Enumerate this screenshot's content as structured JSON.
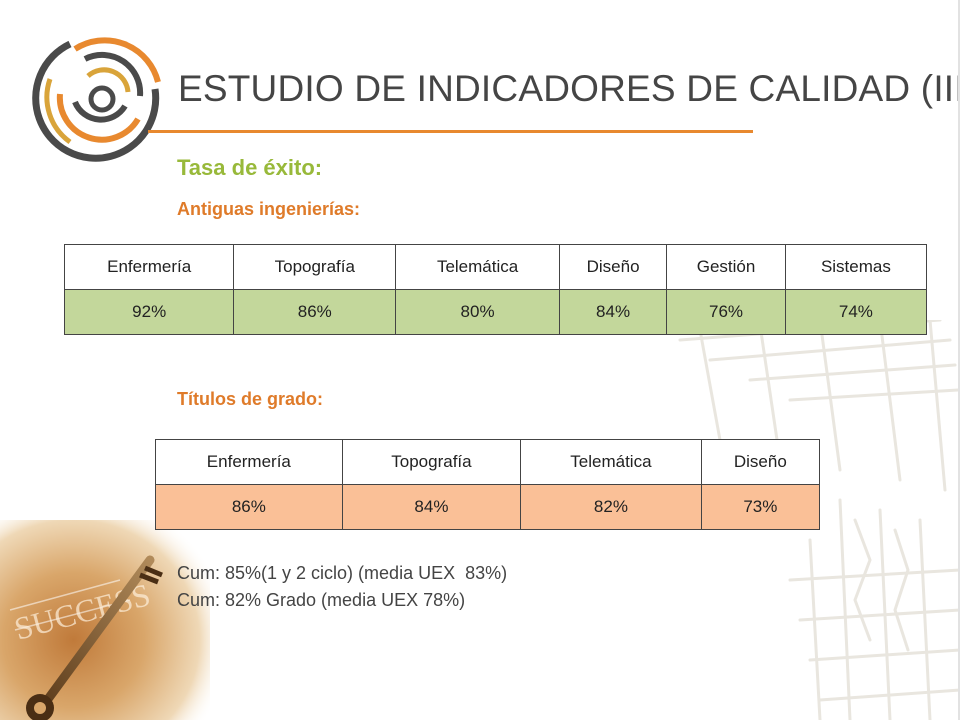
{
  "slide": {
    "title": "ESTUDIO DE INDICADORES DE CALIDAD (III)",
    "subtitle": "Tasa de éxito:",
    "colors": {
      "orange": "#e8892f",
      "green": "#98b93a",
      "table_green": "#c3d79b",
      "table_orange": "#fac097"
    }
  },
  "old_engineering": {
    "label": "Antiguas ingenierías:",
    "headers": [
      "Enfermería",
      "Topografía",
      "Telemática",
      "Diseño",
      "Gestión",
      "Sistemas"
    ],
    "values": [
      "92%",
      "86%",
      "80%",
      "84%",
      "76%",
      "74%"
    ]
  },
  "grado": {
    "label": "Títulos de grado:",
    "headers": [
      "Enfermería",
      "Topografía",
      "Telemática",
      "Diseño"
    ],
    "values": [
      "86%",
      "84%",
      "82%",
      "73%"
    ]
  },
  "notes": [
    "Cum: 85%(1 y 2 ciclo) (media UEX  83%)",
    "Cum: 82% Grado (media UEX 78%)"
  ],
  "decor": {
    "logo_icon": "concentric-arcs-logo-icon",
    "photo": "success-key-photo-icon",
    "background": "sketch-lines-decoration-icon"
  }
}
